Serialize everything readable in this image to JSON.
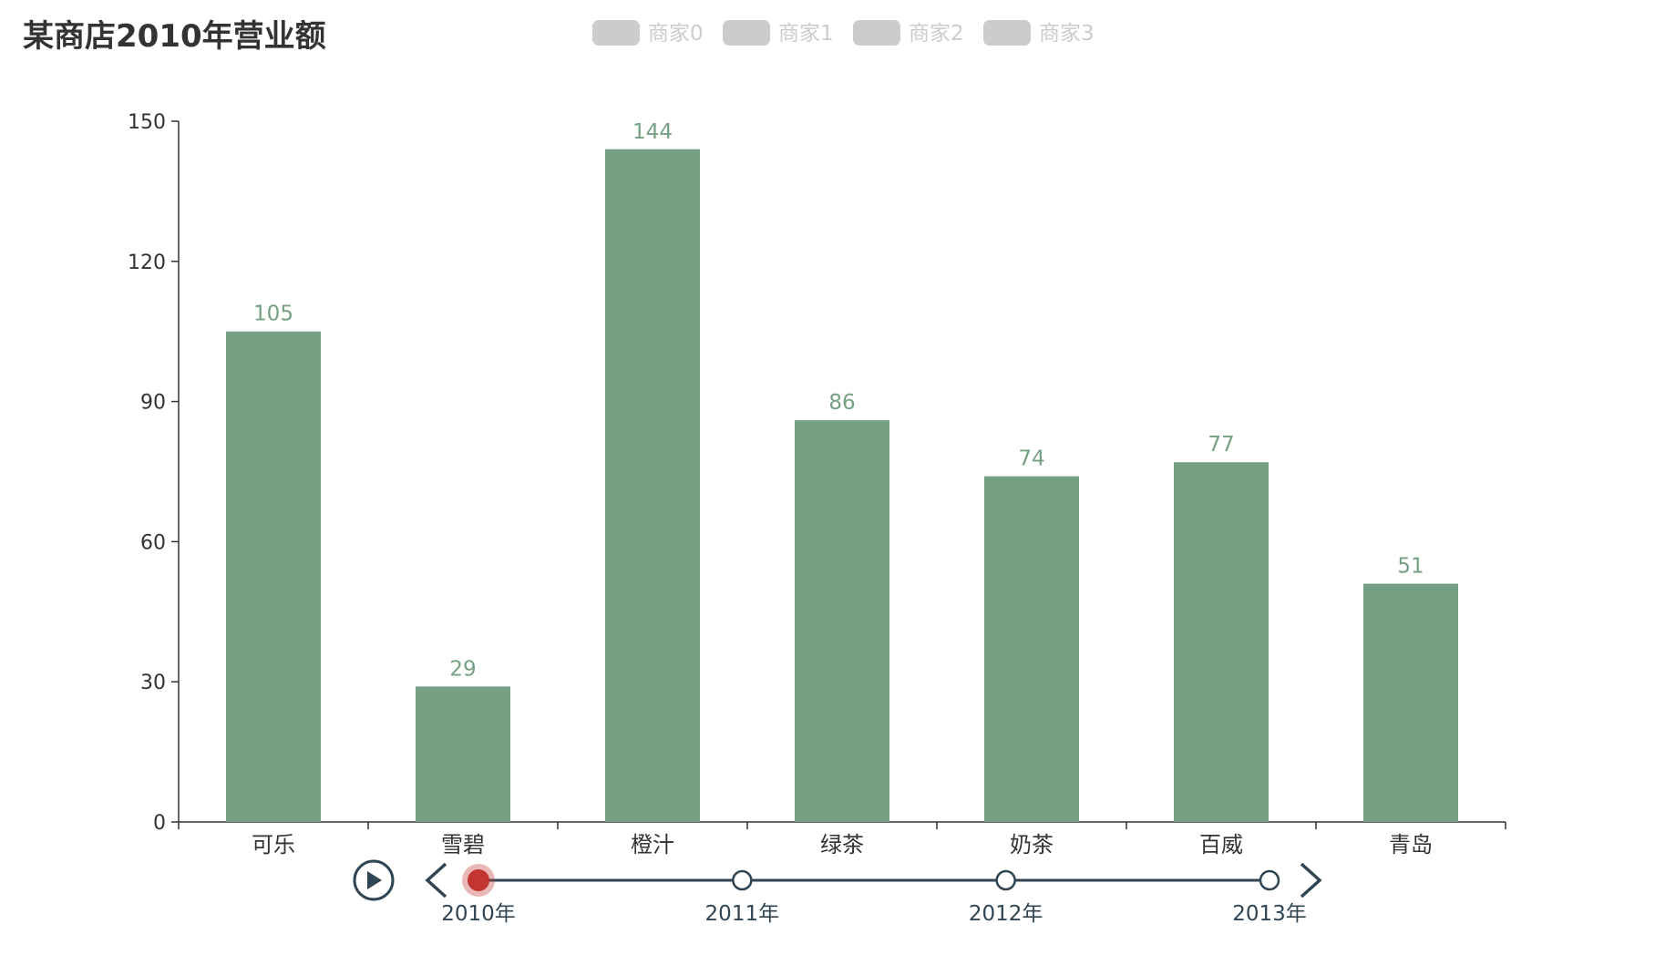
{
  "chart_data": {
    "type": "bar",
    "title": "某商店2010年营业额",
    "categories": [
      "可乐",
      "雪碧",
      "橙汁",
      "绿茶",
      "奶茶",
      "百威",
      "青岛"
    ],
    "series": [
      {
        "values": [
          105,
          29,
          144,
          86,
          74,
          77,
          51
        ]
      }
    ],
    "legend": {
      "items": [
        "商家0",
        "商家1",
        "商家2",
        "商家3"
      ],
      "state": "all-inactive",
      "placement": "top-center"
    },
    "ylim": [
      0,
      150
    ],
    "yticks": [
      0,
      30,
      60,
      90,
      120,
      150
    ],
    "xlabel": "",
    "ylabel": "",
    "grid": false,
    "data_labels": true,
    "timeline": {
      "labels": [
        "2010年",
        "2011年",
        "2012年",
        "2013年"
      ],
      "current_index": 0
    }
  },
  "colors": {
    "bar": "#76a083",
    "label": "#76a083",
    "axis": "#333333",
    "legend_inactive": "#cccccc",
    "timeline": "#2f4554",
    "timeline_active": "#c23531"
  },
  "icons": {
    "play": "play-icon",
    "prev": "chevron-left-icon",
    "next": "chevron-right-icon"
  }
}
